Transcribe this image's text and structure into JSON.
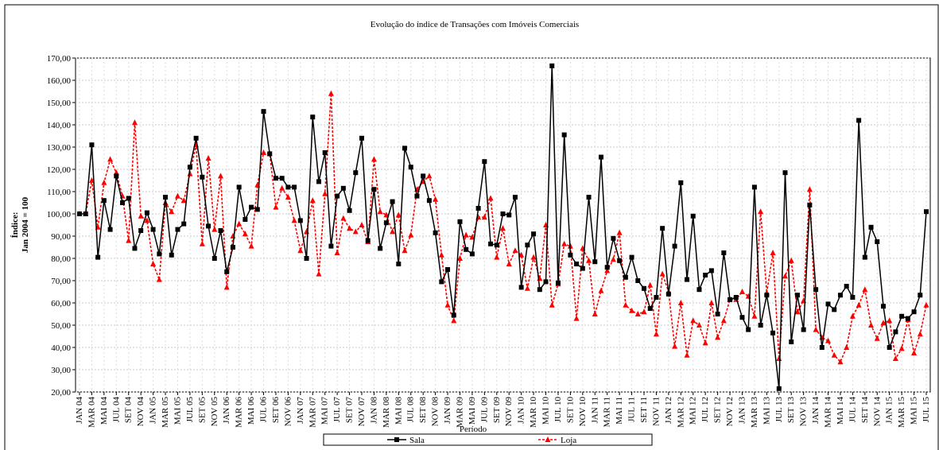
{
  "chart_data": {
    "type": "line",
    "title": "Evolução do índice de Transações com Imóveis Comerciais",
    "xlabel": "Período",
    "ylabel": [
      "Índice:",
      "Jan 2004 = 100"
    ],
    "categories": [
      "JAN 04",
      null,
      "MAR 04",
      null,
      "MAI 04",
      null,
      "JUL 04",
      null,
      "SET 04",
      null,
      "NOV 04",
      null,
      "JAN 05",
      null,
      "MAR 05",
      null,
      "MAI 05",
      null,
      "JUL 05",
      null,
      "SET 05",
      null,
      "NOV 05",
      null,
      "JAN 06",
      null,
      "MAR 06",
      null,
      "MAI 06",
      null,
      "JUL 06",
      null,
      "SET 06",
      null,
      "NOV 06",
      null,
      "JAN 07",
      null,
      "MAR 07",
      null,
      "MAI 07",
      null,
      "JUL 07",
      null,
      "SET 07",
      null,
      "NOV 07",
      null,
      "JAN 08",
      null,
      "MAR 08",
      null,
      "MAI 08",
      null,
      "JUL 08",
      null,
      "SET 08",
      null,
      "NOV 08",
      null,
      "JAN 09",
      null,
      "MAR 09",
      null,
      "MAI 09",
      null,
      "JUL 09",
      null,
      "SET 09",
      null,
      "NOV 09",
      null,
      "JAN 10",
      null,
      "MAR 10",
      null,
      "MAI 10",
      null,
      "JUL 10",
      null,
      "SET 10",
      null,
      "NOV 10",
      null,
      "JAN 11",
      null,
      "MAR 11",
      null,
      "MAI 11",
      null,
      "JUL 11",
      null,
      "SET 11",
      null,
      "NOV 11",
      null,
      "JAN 12",
      null,
      "MAR 12",
      null,
      "MAI 12",
      null,
      "JUL 12",
      null,
      "SET 12",
      null,
      "NOV 12",
      null,
      "JAN 13",
      null,
      "MAR 13",
      null,
      "MAI 13",
      null,
      "JUL 13",
      null,
      "SET 13",
      null,
      "NOV 13",
      null,
      "JAN 14",
      null,
      "MAR 14",
      null,
      "MAI 14",
      null,
      "JUL 14",
      null,
      "SET 14",
      null,
      "NOV 14",
      null,
      "JAN 15",
      null,
      "MAR 15",
      null,
      "MAI 15",
      null,
      "JUL 15"
    ],
    "series": [
      {
        "name": "Sala",
        "color": "#000000",
        "marker": "square",
        "dashed": false,
        "values": [
          100,
          100,
          131,
          80.5,
          106,
          93,
          117,
          105,
          107,
          84.5,
          92.5,
          100.5,
          93,
          82,
          107.5,
          81.5,
          93,
          95.5,
          121,
          134,
          116.5,
          94.5,
          80,
          92.5,
          74,
          85,
          112,
          97.5,
          103,
          102,
          146,
          127,
          116,
          116,
          112,
          112,
          97,
          80,
          143.5,
          114.5,
          127.5,
          85.5,
          108,
          111.5,
          101.5,
          118.5,
          134,
          88,
          111,
          84.5,
          96,
          105.5,
          77.5,
          129.5,
          121,
          108,
          117,
          106,
          91.5,
          69.5,
          75,
          54.5,
          96.5,
          84,
          82,
          102.5,
          123.5,
          86.5,
          86,
          100,
          99.5,
          107.5,
          67,
          86,
          91,
          66,
          69.5,
          166.5,
          69,
          135.5,
          81.5,
          77.5,
          75.5,
          107.5,
          78.5,
          125.5,
          76,
          89,
          79,
          71.5,
          80.5,
          70,
          66.5,
          57.5,
          62.5,
          93.5,
          64,
          85.5,
          114,
          70.5,
          99,
          66,
          72.5,
          74.5,
          55,
          82.5,
          61.5,
          62.5,
          53.5,
          48,
          112,
          50,
          63.5,
          46.5,
          21.5,
          118.5,
          42.5,
          63.5,
          48,
          104,
          66,
          40,
          59.5,
          57,
          63.5,
          67.5,
          62.5,
          142,
          80.5,
          94,
          87.5,
          58.5,
          40,
          47,
          54,
          53,
          56,
          63.5,
          101
        ]
      },
      {
        "name": "Loja",
        "color": "#ff0000",
        "marker": "triangle",
        "dashed": true,
        "values": [
          100,
          100,
          115,
          94,
          114,
          124.5,
          118.5,
          108,
          88,
          141,
          99,
          97,
          77.5,
          70.5,
          105,
          101,
          108,
          106,
          118,
          131,
          86.5,
          125,
          93,
          117,
          67,
          90,
          95.5,
          91,
          85.5,
          113,
          127.5,
          127,
          103,
          111.5,
          107.5,
          97,
          83.5,
          92,
          106,
          73,
          109,
          154,
          82.5,
          98,
          93.5,
          92,
          95,
          87.5,
          124.5,
          101,
          99.5,
          92,
          99.5,
          83.5,
          90.5,
          111,
          114.5,
          117,
          106.5,
          81.5,
          59,
          52,
          80,
          90.5,
          89.5,
          98.5,
          98.5,
          107,
          80.5,
          93.5,
          77.5,
          83.5,
          81.5,
          66.5,
          80.5,
          71,
          95,
          59,
          68.5,
          86.5,
          85.5,
          53,
          84.5,
          79,
          55,
          65.5,
          74.5,
          79.5,
          91.5,
          59,
          56.5,
          55,
          56,
          68,
          46,
          73,
          65,
          40.5,
          60,
          36.5,
          52,
          50,
          42,
          60,
          44.5,
          52,
          61.5,
          61.5,
          65,
          63,
          54,
          101,
          64.5,
          82.5,
          35,
          72,
          79,
          56,
          61,
          111,
          48,
          44.5,
          43,
          36.5,
          33.5,
          40,
          54,
          59,
          66,
          50,
          44,
          51,
          52,
          35,
          39.5,
          52.5,
          37.5,
          46,
          59
        ]
      }
    ],
    "ylim": [
      20,
      170
    ],
    "yticks": [
      {
        "value": 20,
        "label": "20,00"
      },
      {
        "value": 30,
        "label": "30,00"
      },
      {
        "value": 40,
        "label": "40,00"
      },
      {
        "value": 50,
        "label": "50,00"
      },
      {
        "value": 60,
        "label": "60,00"
      },
      {
        "value": 70,
        "label": "70,00"
      },
      {
        "value": 80,
        "label": "80,00"
      },
      {
        "value": 90,
        "label": "90,00"
      },
      {
        "value": 100,
        "label": "100,00"
      },
      {
        "value": 110,
        "label": "110,00"
      },
      {
        "value": 120,
        "label": "120,00"
      },
      {
        "value": 130,
        "label": "130,00"
      },
      {
        "value": 140,
        "label": "140,00"
      },
      {
        "value": 150,
        "label": "150,00"
      },
      {
        "value": 160,
        "label": "160,00"
      },
      {
        "value": 170,
        "label": "170,00"
      }
    ],
    "grid": true,
    "legend": "bottom"
  }
}
